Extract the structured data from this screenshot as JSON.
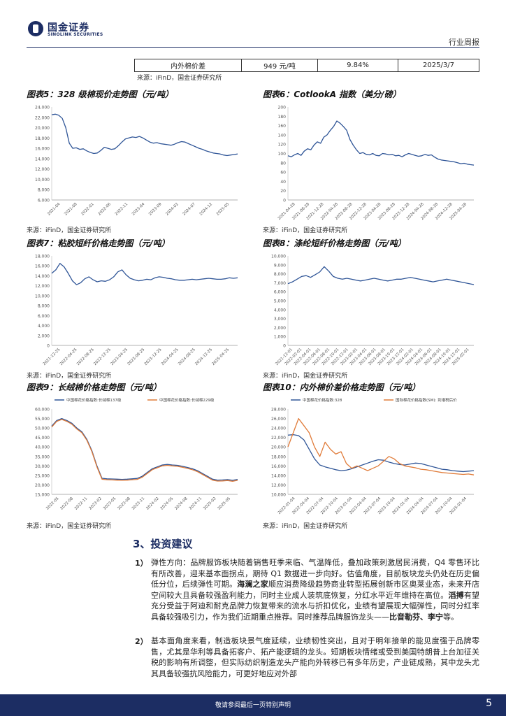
{
  "header": {
    "logo_cn": "国金证券",
    "logo_en": "SINOLINK SECURITIES",
    "report_type": "行业周报"
  },
  "top_table": {
    "row": [
      "内外棉价差",
      "949 元/吨",
      "9.84%",
      "2025/3/7"
    ]
  },
  "sources": {
    "common": "来源：iFinD，国金证券研究所",
    "small": "来源：iFinD，国金证券研究所"
  },
  "charts": {
    "c5": {
      "title": "图表5：328 级棉现价走势图（元/吨）"
    },
    "c6": {
      "title": "图表6：CotlookA 指数（美分/磅）"
    },
    "c7": {
      "title": "图表7：粘胶短纤价格走势图（元/吨）"
    },
    "c8": {
      "title": "图表8：涤纶短纤价格走势图（元/吨）"
    },
    "c9": {
      "title": "图表9：长绒棉价格走势图（元/吨）"
    },
    "c10": {
      "title": "图表10：内外棉价差价格走势图（元/吨）"
    }
  },
  "chart_data": [
    {
      "id": "c5",
      "type": "line",
      "yticks": [
        "24,000",
        "22,000",
        "20,000",
        "18,000",
        "16,000",
        "14,000",
        "12,000",
        "10,000",
        "8,000",
        "6,000"
      ],
      "ylim": [
        6000,
        24000
      ],
      "xticks": [
        "2021-04",
        "2021-08",
        "2022-01",
        "2022-06",
        "2022-11",
        "2023-04",
        "2023-09",
        "2024-02",
        "2024-07",
        "2024-12",
        "2025-05"
      ],
      "series": [
        {
          "name": "328级棉现价",
          "color": "#2f5597",
          "values": [
            22500,
            22600,
            22400,
            21800,
            20000,
            17000,
            16000,
            16100,
            15800,
            15900,
            15500,
            15200,
            15000,
            15100,
            15600,
            16200,
            16000,
            15800,
            15900,
            16500,
            17200,
            17800,
            18000,
            18200,
            18100,
            18300,
            18000,
            17600,
            17200,
            17000,
            17100,
            16900,
            16800,
            16700,
            16600,
            16800,
            17100,
            17300,
            17200,
            16900,
            16600,
            16300,
            16000,
            15800,
            15500,
            15300,
            15100,
            15000,
            14900,
            14700,
            14600,
            14700,
            14800,
            14900
          ]
        }
      ]
    },
    {
      "id": "c6",
      "type": "line",
      "yticks": [
        "200",
        "180",
        "160",
        "140",
        "120",
        "100",
        "80",
        "60",
        "40",
        "20",
        "0"
      ],
      "ylim": [
        0,
        200
      ],
      "xticks": [
        "2021-04-28",
        "2021-08-28",
        "2021-12-28",
        "2022-04-28",
        "2022-08-28",
        "2022-12-28",
        "2023-04-28",
        "2023-08-28",
        "2023-12-28",
        "2024-04-28",
        "2024-08-28",
        "2024-12-28",
        "2025-04-28"
      ],
      "series": [
        {
          "name": "CotlookA指数",
          "color": "#2f5597",
          "values": [
            95,
            93,
            97,
            100,
            96,
            105,
            110,
            108,
            118,
            125,
            122,
            135,
            140,
            150,
            158,
            170,
            165,
            158,
            150,
            130,
            118,
            108,
            100,
            102,
            98,
            97,
            100,
            96,
            95,
            100,
            99,
            97,
            98,
            95,
            96,
            93,
            97,
            100,
            98,
            96,
            94,
            95,
            98,
            96,
            97,
            92,
            88,
            86,
            85,
            84,
            83,
            82,
            80,
            78,
            79,
            77,
            76,
            75
          ]
        }
      ]
    },
    {
      "id": "c7",
      "type": "line",
      "yticks": [
        "18,000",
        "16,000",
        "14,000",
        "12,000",
        "10,000",
        "8,000",
        "6,000",
        "4,000",
        "2,000",
        "0"
      ],
      "ylim": [
        0,
        18000
      ],
      "xticks": [
        "2021-12-25",
        "2022-04-25",
        "2022-08-25",
        "2022-12-25",
        "2023-04-25",
        "2023-08-25",
        "2023-12-25",
        "2024-04-25",
        "2024-08-25",
        "2024-12-25",
        "2025-04-25"
      ],
      "series": [
        {
          "name": "粘胶短纤",
          "color": "#2f5597",
          "values": [
            14500,
            15200,
            16500,
            15800,
            14500,
            13000,
            12200,
            12600,
            13400,
            13800,
            13200,
            12800,
            13000,
            12900,
            13200,
            13800,
            14800,
            15200,
            14200,
            13500,
            13200,
            13000,
            13100,
            13300,
            13200,
            13600,
            13800,
            13700,
            13500,
            13400,
            13200,
            13100,
            13100,
            13200,
            13300,
            13200,
            13300,
            13400,
            13500,
            13400,
            13300,
            13300,
            13400,
            13600,
            13500,
            13600
          ]
        }
      ]
    },
    {
      "id": "c8",
      "type": "line",
      "yticks": [
        "10,000",
        "9,000",
        "8,000",
        "7,000",
        "6,000",
        "5,000",
        "4,000",
        "3,000",
        "2,000",
        "1,000",
        "0"
      ],
      "ylim": [
        0,
        10000
      ],
      "xticks": [
        "2021-12-01",
        "2022-02-01",
        "2022-04-01",
        "2022-06-01",
        "2022-08-01",
        "2022-10-01",
        "2022-12-01",
        "2023-02-01",
        "2023-04-01",
        "2023-06-01",
        "2023-08-01",
        "2023-10-01",
        "2023-12-01",
        "2024-02-01",
        "2024-04-01",
        "2024-06-01",
        "2024-08-01",
        "2024-10-01",
        "2024-12-01",
        "2025-02-01"
      ],
      "series": [
        {
          "name": "涤纶短纤",
          "color": "#2f5597",
          "values": [
            6900,
            7100,
            7400,
            7700,
            7800,
            7600,
            7900,
            8200,
            8800,
            8300,
            7700,
            7500,
            7400,
            7500,
            7400,
            7300,
            7200,
            7300,
            7400,
            7500,
            7400,
            7300,
            7200,
            7300,
            7400,
            7400,
            7500,
            7600,
            7500,
            7400,
            7300,
            7200,
            7100,
            7200,
            7300,
            7400,
            7300,
            7200,
            7100,
            7000,
            6900,
            6800
          ]
        }
      ]
    },
    {
      "id": "c9",
      "type": "line",
      "yticks": [
        "60,000",
        "55,000",
        "50,000",
        "45,000",
        "40,000",
        "35,000",
        "30,000",
        "25,000",
        "20,000",
        "15,000"
      ],
      "ylim": [
        15000,
        60000
      ],
      "xticks": [
        "2022-05",
        "2022-08",
        "2022-11",
        "2023-02",
        "2023-05",
        "2023-08",
        "2023-11",
        "2024-02",
        "2024-05",
        "2024-08",
        "2024-11",
        "2025-02",
        "2025-05"
      ],
      "legend": [
        "中国棉花价格指数:长绒棉137级",
        "中国棉花价格指数:长绒棉229级"
      ],
      "series": [
        {
          "name": "长绒棉137级",
          "color": "#2f5597",
          "values": [
            51000,
            54000,
            55000,
            54000,
            52500,
            50000,
            48000,
            44000,
            38000,
            30000,
            23500,
            23200,
            23100,
            23000,
            22900,
            23000,
            23200,
            23400,
            24500,
            26500,
            28500,
            29500,
            30500,
            30800,
            30500,
            30300,
            29800,
            29200,
            28500,
            27500,
            26000,
            24500,
            23000,
            22500,
            22600,
            22800,
            22400,
            22900
          ]
        },
        {
          "name": "长绒棉229级",
          "color": "#e07b39",
          "values": [
            50500,
            53500,
            54500,
            53500,
            52000,
            49500,
            47500,
            43500,
            37500,
            29500,
            23000,
            22700,
            22600,
            22500,
            22400,
            22500,
            22700,
            22900,
            24000,
            26000,
            28000,
            29000,
            30000,
            30300,
            30000,
            29800,
            29300,
            28700,
            28000,
            27000,
            25500,
            24000,
            22500,
            22000,
            22100,
            22300,
            21900,
            22400
          ]
        }
      ]
    },
    {
      "id": "c10",
      "type": "line",
      "yticks": [
        "28,000",
        "26,000",
        "24,000",
        "22,000",
        "20,000",
        "18,000",
        "16,000",
        "14,000",
        "12,000",
        "10,000"
      ],
      "ylim": [
        10000,
        28000
      ],
      "xticks": [
        "2022-01-04",
        "2022-04-04",
        "2022-07-04",
        "2022-10-04",
        "2023-01-04",
        "2023-04-04",
        "2023-07-04",
        "2023-10-04",
        "2024-01-04",
        "2024-04-04",
        "2024-07-04",
        "2024-10-04",
        "2025-01-04"
      ],
      "legend": [
        "中国棉花价格指数:328",
        "国际棉花价格指数(SM): 到港税后价"
      ],
      "series": [
        {
          "name": "中国棉花价格指数:328",
          "color": "#2f5597",
          "values": [
            22500,
            22600,
            22400,
            21500,
            19500,
            17500,
            16200,
            15800,
            15500,
            15200,
            15000,
            15100,
            15400,
            15800,
            16200,
            16600,
            17000,
            17300,
            17200,
            16800,
            16500,
            16300,
            16200,
            16400,
            16600,
            16500,
            16200,
            15900,
            15600,
            15300,
            15200,
            15000,
            14900,
            14800,
            14900,
            15000
          ]
        },
        {
          "name": "国际棉花价格指数(SM)",
          "color": "#e07b39",
          "values": [
            20000,
            23000,
            26000,
            24500,
            23000,
            20000,
            18000,
            21000,
            19500,
            18500,
            19000,
            16500,
            15500,
            16000,
            15500,
            15000,
            15500,
            16000,
            17000,
            18000,
            17500,
            16500,
            16000,
            15800,
            15600,
            15300,
            15200,
            15000,
            14800,
            14600,
            14500,
            14400,
            14300,
            14200,
            14300,
            14100
          ]
        }
      ]
    }
  ],
  "section": {
    "title": "3、投资建议"
  },
  "paragraphs": {
    "p1_num": "1）",
    "p1_a": "弹性方向：品牌服饰板块随着销售旺季来临、气温降低，叠加政策刺激居民消费，Q4 零售环比有所改善，迎来基本面拐点，期待 Q1 数据进一步向好。估值角度，目前板块龙头仍处在历史偏低分位，后续弹性可期。",
    "p1_b1": "海澜之家",
    "p1_c": "顺应消费降级趋势商业转型拓展创新市区奥莱业态，未来开店空间较大且具备较强盈利能力，同时主业成人装筑底恢复，分红水平近年维持在高位。",
    "p1_b2": "滔搏",
    "p1_d": "有望充分受益于阿迪和耐克品牌力恢复带来的流水与折扣优化，业绩有望展现大幅弹性，同时分红率具备较强吸引力，作为我们近期重点推荐。同时推荐品牌服饰龙头——",
    "p1_b3": "比音勒芬、李宁",
    "p1_e": "等。",
    "p2_num": "2）",
    "p2": "基本面角度来看，制造板块景气度延续，业绩韧性突出，且对于明年接单的能见度强于品牌零售，尤其是华利等具备拓客户、拓产能逻辑的龙头。短期板块情绪或受到美国特朗普上台加征关税的影响有所调整，但实际纺织制造龙头产能向外转移已有多年历史，产业链成熟，其中龙头尤其具备较强抗风险能力，可更好地应对外部"
  },
  "footer": {
    "disclaimer": "敬请参阅最后一页特别声明",
    "page": "5"
  }
}
